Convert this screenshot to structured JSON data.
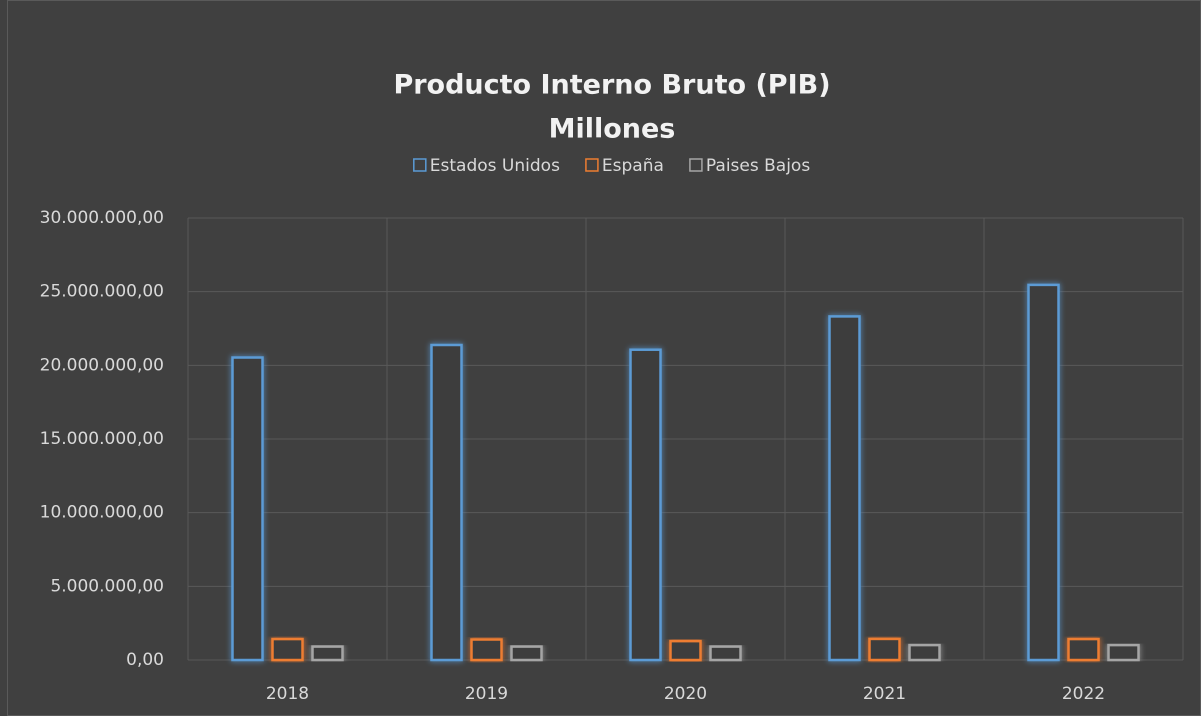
{
  "chart_data": {
    "type": "bar",
    "title": "Producto Interno Bruto (PIB)",
    "subtitle": "Millones",
    "categories": [
      "2018",
      "2019",
      "2020",
      "2021",
      "2022"
    ],
    "series": [
      {
        "name": "Estados Unidos",
        "color": "#5b9bd5",
        "values": [
          20530000,
          21380000,
          21060000,
          23320000,
          25460000
        ]
      },
      {
        "name": "España",
        "color": "#ed7d31",
        "values": [
          1420000,
          1390000,
          1280000,
          1430000,
          1420000
        ]
      },
      {
        "name": "Paises Bajos",
        "color": "#a5a5a5",
        "values": [
          910000,
          910000,
          910000,
          1010000,
          1010000
        ]
      }
    ],
    "ylim": [
      0,
      30000000
    ],
    "yticks": [
      {
        "value": 0,
        "label": "0,00"
      },
      {
        "value": 5000000,
        "label": "5.000.000,00"
      },
      {
        "value": 10000000,
        "label": "10.000.000,00"
      },
      {
        "value": 15000000,
        "label": "15.000.000,00"
      },
      {
        "value": 20000000,
        "label": "20.000.000,00"
      },
      {
        "value": 25000000,
        "label": "25.000.000,00"
      },
      {
        "value": 30000000,
        "label": "30.000.000,00"
      }
    ],
    "grid": true,
    "legend": "top"
  }
}
